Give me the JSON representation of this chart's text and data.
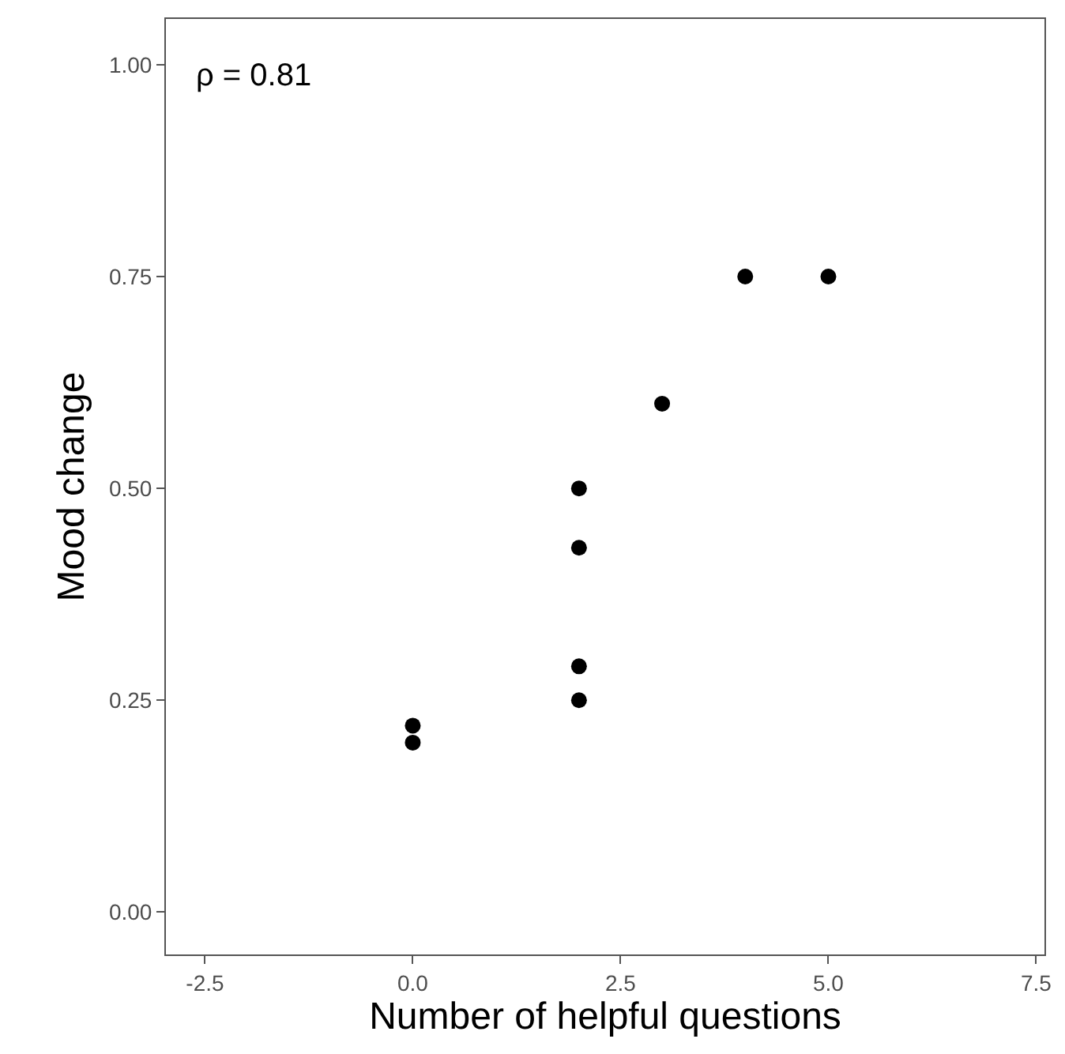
{
  "chart_data": {
    "type": "scatter",
    "xlabel": "Number of helpful questions",
    "ylabel": "Mood change",
    "annotations": [
      "ρ = 0.81"
    ],
    "x": [
      0,
      0,
      2,
      2,
      2,
      2,
      3,
      4,
      5
    ],
    "values": [
      0.2,
      0.22,
      0.25,
      0.29,
      0.43,
      0.5,
      0.6,
      0.75,
      0.75
    ],
    "color": "#000000",
    "marker": "circle",
    "xlim": [
      -2.97,
      7.6
    ],
    "xticks": [
      {
        "value": -2.5,
        "label": "-2.5"
      },
      {
        "value": 0,
        "label": "0.0"
      },
      {
        "value": 2.5,
        "label": "2.5"
      },
      {
        "value": 5,
        "label": "5.0"
      },
      {
        "value": 7.5,
        "label": "7.5"
      }
    ],
    "ylim": [
      -0.05,
      1.054
    ],
    "yticks": [
      {
        "value": 0,
        "label": "0.00"
      },
      {
        "value": 0.25,
        "label": "0.25"
      },
      {
        "value": 0.5,
        "label": "0.50"
      },
      {
        "value": 0.75,
        "label": "0.75"
      },
      {
        "value": 1,
        "label": "1.00"
      }
    ],
    "grid": false,
    "legend": false
  }
}
